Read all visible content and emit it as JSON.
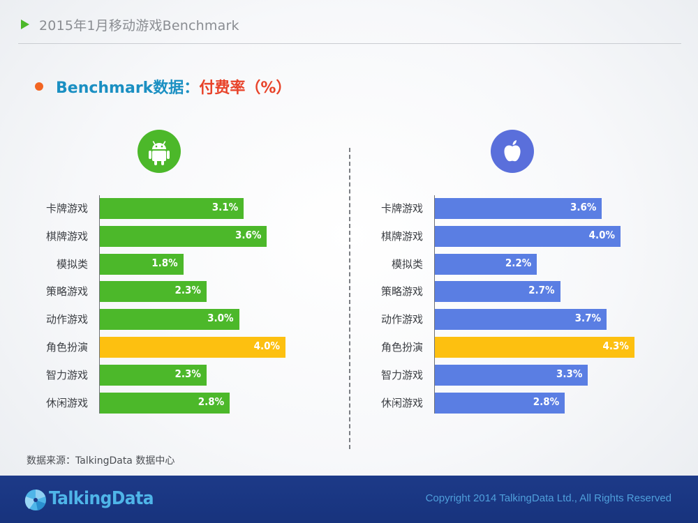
{
  "header": {
    "title": "2015年1月移动游戏Benchmark"
  },
  "subtitle": {
    "part1": "Benchmark数据：",
    "part2": "付费率（%）"
  },
  "chart_data": [
    {
      "type": "bar",
      "orientation": "horizontal",
      "platform_icon": "android-icon",
      "categories": [
        "卡牌游戏",
        "棋牌游戏",
        "模拟类",
        "策略游戏",
        "动作游戏",
        "角色扮演",
        "智力游戏",
        "休闲游戏"
      ],
      "values": [
        3.1,
        3.6,
        1.8,
        2.3,
        3.0,
        4.0,
        2.3,
        2.8
      ],
      "value_labels": [
        "3.1%",
        "3.6%",
        "1.8%",
        "2.3%",
        "3.0%",
        "4.0%",
        "2.3%",
        "2.8%"
      ],
      "bar_color": "#4cb82a",
      "highlight_color": "#fdc010",
      "highlight_index": 5,
      "xlim": [
        0,
        4.3
      ]
    },
    {
      "type": "bar",
      "orientation": "horizontal",
      "platform_icon": "apple-icon",
      "categories": [
        "卡牌游戏",
        "棋牌游戏",
        "模拟类",
        "策略游戏",
        "动作游戏",
        "角色扮演",
        "智力游戏",
        "休闲游戏"
      ],
      "values": [
        3.6,
        4.0,
        2.2,
        2.7,
        3.7,
        4.3,
        3.3,
        2.8
      ],
      "value_labels": [
        "3.6%",
        "4.0%",
        "2.2%",
        "2.7%",
        "3.7%",
        "4.3%",
        "3.3%",
        "2.8%"
      ],
      "bar_color": "#5a7ee3",
      "highlight_color": "#fdc010",
      "highlight_index": 5,
      "xlim": [
        0,
        4.3
      ]
    }
  ],
  "source": {
    "text": "数据来源：TalkingData 数据中心"
  },
  "footer": {
    "logo_text": "TalkingData",
    "copyright": "Copyright 2014 TalkingData Ltd., All Rights Reserved"
  }
}
